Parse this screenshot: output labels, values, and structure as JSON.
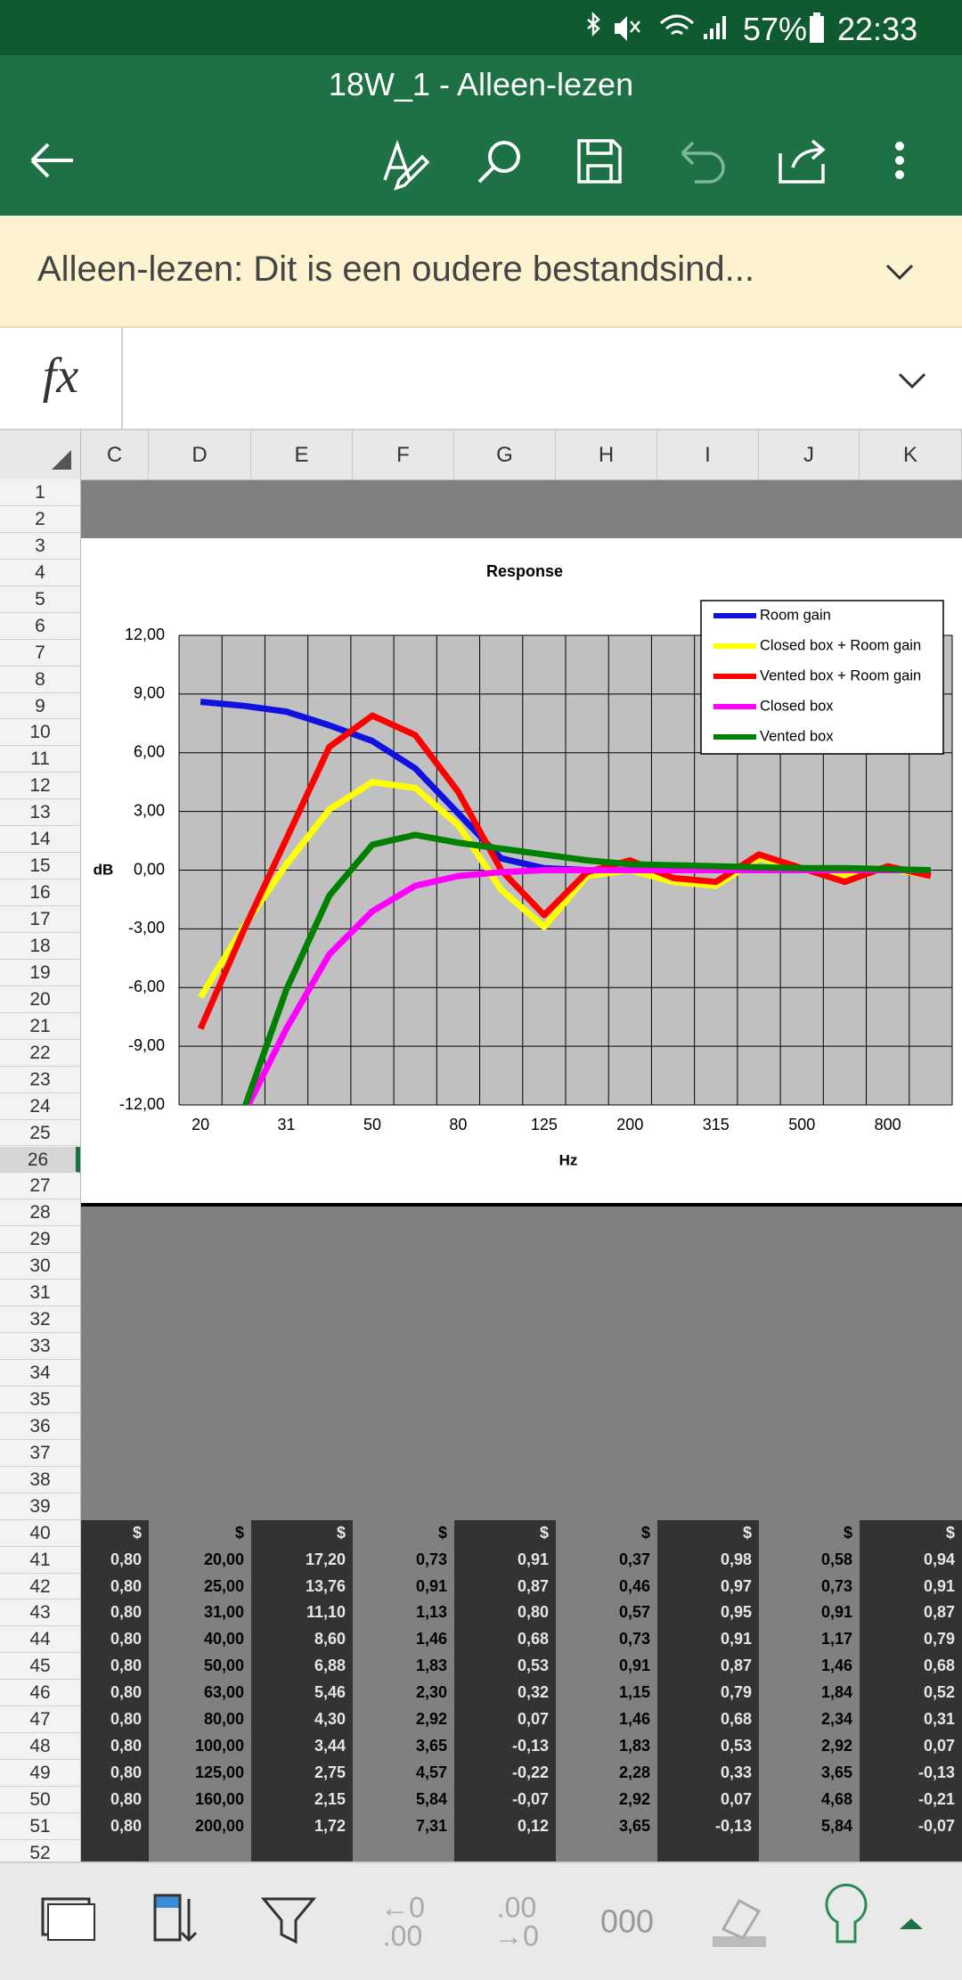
{
  "status_bar": {
    "battery": "57%",
    "time": "22:33"
  },
  "toolbar": {
    "title": "18W_1 - Alleen-lezen"
  },
  "banner": {
    "text": "Alleen-lezen: Dit is een oudere bestandsind..."
  },
  "formula_bar": {
    "label": "fx"
  },
  "columns": [
    "C",
    "D",
    "E",
    "F",
    "G",
    "H",
    "I",
    "J",
    "K"
  ],
  "rows": [
    1,
    2,
    3,
    4,
    5,
    6,
    7,
    8,
    9,
    10,
    11,
    12,
    13,
    14,
    15,
    16,
    17,
    18,
    19,
    20,
    21,
    22,
    23,
    24,
    25,
    26,
    27,
    28,
    29,
    30,
    31,
    32,
    33,
    34,
    35,
    36,
    37,
    38,
    39,
    40,
    41,
    42,
    43,
    44,
    45,
    46,
    47,
    48,
    49,
    50,
    51,
    52
  ],
  "chart_data": {
    "type": "line",
    "title": "Response",
    "y_label": "dB",
    "x_label": "Hz",
    "categories": [
      "20",
      null,
      "31",
      null,
      "50",
      null,
      "80",
      null,
      "125",
      null,
      "200",
      null,
      "315",
      null,
      "500",
      null,
      "800",
      null
    ],
    "series": [
      {
        "name": "Room gain",
        "color": "#1010e0",
        "values": [
          8.6,
          8.4,
          8.1,
          7.4,
          6.6,
          5.2,
          2.9,
          0.6,
          0.1,
          0,
          0,
          0,
          0,
          0,
          0,
          0,
          0,
          0
        ]
      },
      {
        "name": "Closed box + Room gain",
        "color": "#ffff00",
        "values": [
          -6.5,
          -2.9,
          0.3,
          3.1,
          4.5,
          4.2,
          2.3,
          -1.0,
          -2.9,
          -0.3,
          0,
          -0.6,
          -0.8,
          0.6,
          0.1,
          -0.3,
          0.1,
          -0.3
        ]
      },
      {
        "name": "Vented box + Room gain",
        "color": "#ff0000",
        "values": [
          -8.1,
          -3.1,
          1.6,
          6.3,
          7.9,
          6.9,
          4.0,
          0,
          -2.3,
          -0.1,
          0.5,
          -0.4,
          -0.6,
          0.8,
          0.1,
          -0.6,
          0.2,
          -0.3
        ]
      },
      {
        "name": "Closed box",
        "color": "#ff00ff",
        "values": [
          null,
          -12.5,
          -8.1,
          -4.3,
          -2.1,
          -0.8,
          -0.3,
          -0.1,
          0,
          0,
          0,
          0,
          0,
          0,
          0,
          0,
          0,
          0
        ]
      },
      {
        "name": "Vented box",
        "color": "#008000",
        "values": [
          null,
          -12.3,
          -6.1,
          -1.3,
          1.3,
          1.8,
          1.4,
          1.1,
          0.8,
          0.5,
          0.3,
          0.25,
          0.2,
          0.15,
          0.1,
          0.1,
          0.05,
          0
        ]
      }
    ],
    "ylim": [
      -12,
      12
    ],
    "yticks": [
      {
        "value": -12,
        "label": "-12,00"
      },
      {
        "value": -9,
        "label": "-9,00"
      },
      {
        "value": -6,
        "label": "-6,00"
      },
      {
        "value": -3,
        "label": "-3,00"
      },
      {
        "value": 0,
        "label": "0,00"
      },
      {
        "value": 3,
        "label": "3,00"
      },
      {
        "value": 6,
        "label": "6,00"
      },
      {
        "value": 9,
        "label": "9,00"
      },
      {
        "value": 12,
        "label": "12,00"
      }
    ],
    "grid": true,
    "legend": "top-right"
  },
  "table": {
    "rows": [
      [
        "$",
        "$",
        "$",
        "$",
        "$",
        "$",
        "$",
        "$",
        "$"
      ],
      [
        "0,80",
        "20,00",
        "17,20",
        "0,73",
        "0,91",
        "0,37",
        "0,98",
        "0,58",
        "0,94"
      ],
      [
        "0,80",
        "25,00",
        "13,76",
        "0,91",
        "0,87",
        "0,46",
        "0,97",
        "0,73",
        "0,91"
      ],
      [
        "0,80",
        "31,00",
        "11,10",
        "1,13",
        "0,80",
        "0,57",
        "0,95",
        "0,91",
        "0,87"
      ],
      [
        "0,80",
        "40,00",
        "8,60",
        "1,46",
        "0,68",
        "0,73",
        "0,91",
        "1,17",
        "0,79"
      ],
      [
        "0,80",
        "50,00",
        "6,88",
        "1,83",
        "0,53",
        "0,91",
        "0,87",
        "1,46",
        "0,68"
      ],
      [
        "0,80",
        "63,00",
        "5,46",
        "2,30",
        "0,32",
        "1,15",
        "0,79",
        "1,84",
        "0,52"
      ],
      [
        "0,80",
        "80,00",
        "4,30",
        "2,92",
        "0,07",
        "1,46",
        "0,68",
        "2,34",
        "0,31"
      ],
      [
        "0,80",
        "100,00",
        "3,44",
        "3,65",
        "-0,13",
        "1,83",
        "0,53",
        "2,92",
        "0,07"
      ],
      [
        "0,80",
        "125,00",
        "2,75",
        "4,57",
        "-0,22",
        "2,28",
        "0,33",
        "3,65",
        "-0,13"
      ],
      [
        "0,80",
        "160,00",
        "2,15",
        "5,84",
        "-0,07",
        "2,92",
        "0,07",
        "4,68",
        "-0,21"
      ],
      [
        "0,80",
        "200,00",
        "1,72",
        "7,31",
        "0,12",
        "3,65",
        "-0,13",
        "5,84",
        "-0,07"
      ]
    ]
  },
  "bottom_toolbar": {
    "decrease_decimal": [
      "←0",
      ".00"
    ],
    "increase_decimal": [
      ".00",
      "→0"
    ],
    "thousands": "000"
  }
}
